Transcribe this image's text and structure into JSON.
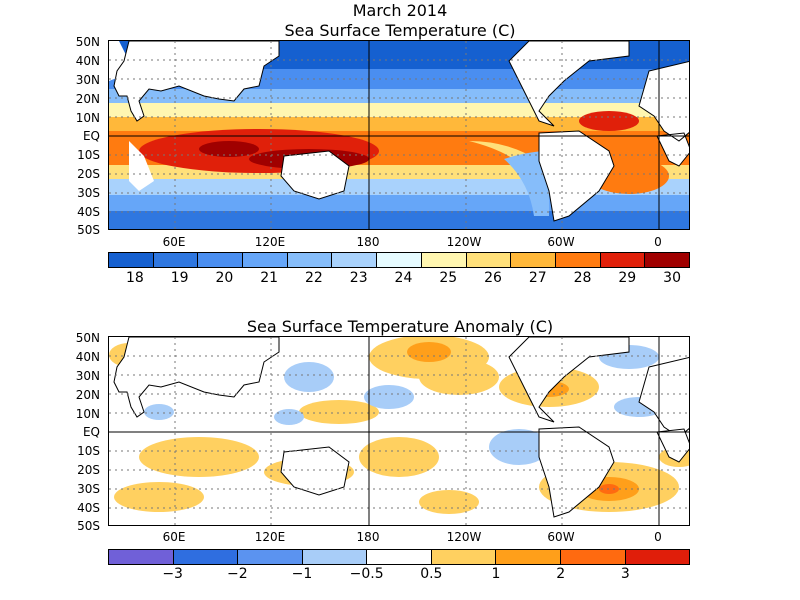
{
  "titles": {
    "month": "March 2014",
    "sst": "Sea Surface Temperature (C)",
    "anom": "Sea Surface Temperature Anomaly (C)"
  },
  "latitude_labels": [
    "50N",
    "40N",
    "30N",
    "20N",
    "10N",
    "EQ",
    "10S",
    "20S",
    "30S",
    "40S",
    "50S"
  ],
  "longitude_labels": [
    "60E",
    "120E",
    "180",
    "120W",
    "60W",
    "0"
  ],
  "sst_colorbar": {
    "colors": [
      "#1560d0",
      "#2f77e0",
      "#4a8ef0",
      "#66a6f8",
      "#86bdfa",
      "#a9d2fc",
      "#e6fbff",
      "#fff6b0",
      "#ffe07a",
      "#ffb83a",
      "#ff7b10",
      "#e0200a",
      "#a00000"
    ],
    "labels": [
      "18",
      "19",
      "20",
      "21",
      "22",
      "23",
      "24",
      "25",
      "26",
      "27",
      "28",
      "29",
      "30"
    ]
  },
  "anom_colorbar": {
    "colors": [
      "#7060d8",
      "#2f6ee0",
      "#5b93f0",
      "#a8cdf8",
      "#ffffff",
      "#ffd060",
      "#ff9f1a",
      "#ff6a10",
      "#e01e0a"
    ],
    "labels": [
      "−3",
      "−2",
      "−1",
      "−0.5",
      "0.5",
      "1",
      "2",
      "3"
    ]
  }
}
